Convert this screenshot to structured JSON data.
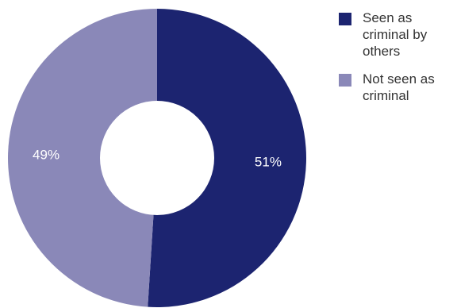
{
  "chart_data": {
    "type": "pie",
    "donut": true,
    "categories": [
      "Seen as criminal by others",
      "Not seen as criminal"
    ],
    "values": [
      51,
      49
    ],
    "value_labels": [
      "51%",
      "49%"
    ],
    "colors": [
      "#1c2470",
      "#8a88b8"
    ],
    "legend_position": "right"
  }
}
